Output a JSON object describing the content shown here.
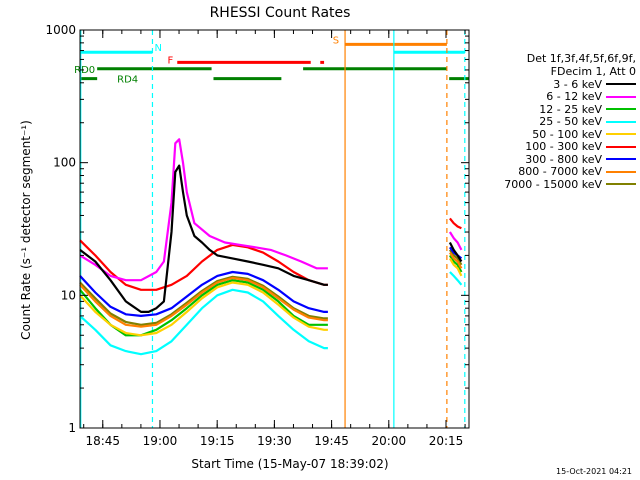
{
  "chart_data": {
    "type": "line",
    "title": "RHESSI Count Rates",
    "xlabel": "Start Time (15-May-07 18:39:02)",
    "ylabel": "Count Rate (s⁻¹ detector segment⁻¹)",
    "ylog": true,
    "ylim": [
      1,
      1000
    ],
    "xlim_minutes_after_start": [
      0,
      102
    ],
    "x_ticks": [
      {
        "label": "18:45",
        "value": 5.97
      },
      {
        "label": "19:00",
        "value": 20.97
      },
      {
        "label": "19:15",
        "value": 35.97
      },
      {
        "label": "19:30",
        "value": 50.97
      },
      {
        "label": "19:45",
        "value": 65.97
      },
      {
        "label": "20:00",
        "value": 80.97
      },
      {
        "label": "20:15",
        "value": 95.97
      }
    ],
    "y_ticks": [
      {
        "label": "1",
        "value": 1
      },
      {
        "label": "10",
        "value": 10
      },
      {
        "label": "100",
        "value": 100
      },
      {
        "label": "1000",
        "value": 1000
      }
    ],
    "legend_header": [
      "Det 1f,3f,4f,5f,6f,9f,",
      "FDecim 1, Att 0"
    ],
    "series": [
      {
        "name": "3 - 6 keV",
        "color": "#000000",
        "segments": [
          {
            "x": [
              0,
              4,
              8,
              12,
              16,
              18,
              20,
              22,
              24,
              25,
              26,
              27,
              28,
              30,
              32,
              34,
              36,
              40,
              44,
              48,
              52,
              56,
              60,
              64,
              65
            ],
            "y": [
              22,
              18,
              13,
              9,
              7.5,
              7.5,
              8,
              9,
              30,
              85,
              95,
              60,
              40,
              28,
              25,
              22,
              20,
              19,
              18,
              17,
              16,
              14,
              13,
              12,
              12
            ]
          },
          {
            "x": [
              97,
              98,
              99,
              100
            ],
            "y": [
              25,
              22,
              20,
              18
            ]
          }
        ]
      },
      {
        "name": "6 - 12 keV",
        "color": "#ff00ff",
        "segments": [
          {
            "x": [
              0,
              4,
              8,
              12,
              16,
              20,
              22,
              24,
              25,
              26,
              27,
              28,
              30,
              34,
              38,
              42,
              46,
              50,
              54,
              58,
              62,
              65
            ],
            "y": [
              20,
              17,
              14,
              13,
              13,
              15,
              18,
              50,
              140,
              150,
              100,
              60,
              35,
              28,
              25,
              24,
              23,
              22,
              20,
              18,
              16,
              16
            ]
          },
          {
            "x": [
              97,
              98,
              99,
              100
            ],
            "y": [
              30,
              27,
              25,
              22
            ]
          }
        ]
      },
      {
        "name": "12 - 25 keV",
        "color": "#00c000",
        "segments": [
          {
            "x": [
              0,
              4,
              8,
              12,
              16,
              20,
              24,
              28,
              32,
              36,
              40,
              44,
              48,
              52,
              56,
              60,
              64,
              65
            ],
            "y": [
              11,
              8,
              6,
              5,
              5,
              5.5,
              6.5,
              8,
              10,
              12,
              13,
              12.5,
              11,
              9,
              7,
              6,
              6,
              6
            ]
          },
          {
            "x": [
              97,
              98,
              99,
              100
            ],
            "y": [
              20,
              18,
              17,
              15
            ]
          }
        ]
      },
      {
        "name": "25 - 50 keV",
        "color": "#00ffff",
        "segments": [
          {
            "x": [
              0,
              4,
              8,
              12,
              16,
              20,
              24,
              28,
              32,
              36,
              40,
              44,
              48,
              52,
              56,
              60,
              64,
              65
            ],
            "y": [
              7,
              5.5,
              4.2,
              3.8,
              3.6,
              3.8,
              4.5,
              6,
              8,
              10,
              11,
              10.5,
              9,
              7,
              5.5,
              4.5,
              4,
              4
            ]
          },
          {
            "x": [
              97,
              98,
              99,
              100
            ],
            "y": [
              15,
              14,
              13,
              12
            ]
          }
        ]
      },
      {
        "name": "50 - 100 keV",
        "color": "#ffd000",
        "segments": [
          {
            "x": [
              0,
              4,
              8,
              12,
              16,
              20,
              24,
              28,
              32,
              36,
              40,
              44,
              48,
              52,
              56,
              60,
              64,
              65
            ],
            "y": [
              10,
              7.5,
              6,
              5.2,
              5,
              5.2,
              6,
              7.5,
              9.5,
              11.5,
              12.5,
              12,
              10.5,
              8.5,
              6.8,
              5.8,
              5.5,
              5.5
            ]
          },
          {
            "x": [
              97,
              98,
              99,
              100
            ],
            "y": [
              19,
              17,
              16,
              14
            ]
          }
        ]
      },
      {
        "name": "100 - 300 keV",
        "color": "#ff0000",
        "segments": [
          {
            "x": [
              0,
              4,
              8,
              12,
              16,
              20,
              24,
              28,
              32,
              36,
              40,
              44,
              48,
              52,
              56,
              60,
              64,
              65
            ],
            "y": [
              26,
              20,
              15,
              12,
              11,
              11,
              12,
              14,
              18,
              22,
              24,
              23,
              21,
              18,
              15,
              13,
              12,
              12
            ]
          },
          {
            "x": [
              97,
              98,
              99,
              100
            ],
            "y": [
              38,
              35,
              33,
              32
            ]
          }
        ]
      },
      {
        "name": "300 - 800 keV",
        "color": "#0000ff",
        "segments": [
          {
            "x": [
              0,
              4,
              8,
              12,
              16,
              20,
              24,
              28,
              32,
              36,
              40,
              44,
              48,
              52,
              56,
              60,
              64,
              65
            ],
            "y": [
              14,
              10.5,
              8.2,
              7.2,
              7,
              7.2,
              8,
              9.8,
              12,
              14,
              15,
              14.5,
              13,
              11,
              9,
              8,
              7.5,
              7.5
            ]
          },
          {
            "x": [
              97,
              98,
              99,
              100
            ],
            "y": [
              23,
              21,
              20,
              19
            ]
          }
        ]
      },
      {
        "name": "800 - 7000 keV",
        "color": "#ff8000",
        "segments": [
          {
            "x": [
              0,
              4,
              8,
              12,
              16,
              20,
              24,
              28,
              32,
              36,
              40,
              44,
              48,
              52,
              56,
              60,
              64,
              65
            ],
            "y": [
              12,
              9,
              7,
              6,
              5.8,
              6,
              7,
              8.5,
              10.5,
              12.5,
              13.5,
              13,
              11.5,
              9.5,
              7.8,
              6.8,
              6.5,
              6.5
            ]
          },
          {
            "x": [
              97,
              98,
              99,
              100
            ],
            "y": [
              21,
              19,
              18,
              16
            ]
          }
        ]
      },
      {
        "name": "7000 - 15000 keV",
        "color": "#808000",
        "segments": [
          {
            "x": [
              0,
              4,
              8,
              12,
              16,
              20,
              24,
              28,
              32,
              36,
              40,
              44,
              48,
              52,
              56,
              60,
              64,
              65
            ],
            "y": [
              12.5,
              9.5,
              7.3,
              6.3,
              6,
              6.2,
              7.2,
              8.8,
              10.8,
              12.8,
              13.8,
              13.3,
              11.8,
              9.8,
              8,
              7,
              6.7,
              6.7
            ]
          },
          {
            "x": [
              97,
              98,
              99,
              100
            ],
            "y": [
              22,
              20,
              19,
              17
            ]
          }
        ]
      }
    ],
    "vertical_lines": [
      {
        "x": 0.2,
        "color": "#00ffff",
        "style": "solid"
      },
      {
        "x": 19,
        "color": "#00ffff",
        "style": "dashed"
      },
      {
        "x": 69.5,
        "color": "#ff8000",
        "style": "solid"
      },
      {
        "x": 82.3,
        "color": "#00ffff",
        "style": "solid"
      },
      {
        "x": 96.2,
        "color": "#ff8000",
        "style": "dashed"
      },
      {
        "x": 100.9,
        "color": "#00ffff",
        "style": "dashed"
      }
    ],
    "flag_bars": [
      {
        "label": "N",
        "color": "#00ffff",
        "level_y": 680,
        "segments": [
          [
            0,
            19
          ],
          [
            82.3,
            100.9
          ]
        ]
      },
      {
        "label": "F",
        "color": "#ff0000",
        "level_y": 570,
        "segments": [
          [
            25.5,
            60.5
          ],
          [
            63,
            64
          ]
        ]
      },
      {
        "label": "S",
        "color": "#ff8000",
        "level_y": 780,
        "segments": [
          [
            69.5,
            96.2
          ]
        ]
      },
      {
        "label": "RD0",
        "color": "#008000",
        "level_y": 510,
        "segments": [
          [
            4.5,
            34.5
          ],
          [
            58.5,
            96.2
          ]
        ]
      },
      {
        "label": "RD4",
        "color": "#008000",
        "level_y": 430,
        "segments": [
          [
            0,
            4.5
          ],
          [
            35,
            52.8
          ],
          [
            96.8,
            102
          ]
        ]
      }
    ]
  },
  "timestamp": "15-Oct-2021 04:21"
}
